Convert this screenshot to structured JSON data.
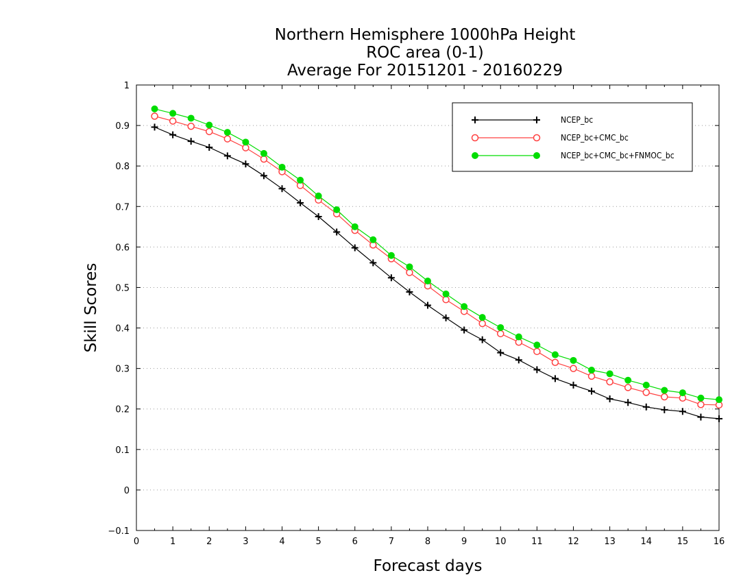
{
  "chart_data": {
    "type": "line",
    "title": [
      "Northern Hemisphere 1000hPa Height",
      "ROC area (0-1)",
      "Average For 20151201 - 20160229"
    ],
    "xlabel": "Forecast days",
    "ylabel": "Skill Scores",
    "xlim": [
      0,
      16
    ],
    "ylim": [
      -0.1,
      1
    ],
    "x_ticks": [
      0,
      1,
      2,
      3,
      4,
      5,
      6,
      7,
      8,
      9,
      10,
      11,
      12,
      13,
      14,
      15,
      16
    ],
    "y_ticks": [
      -0.1,
      0,
      0.1,
      0.2,
      0.3,
      0.4,
      0.5,
      0.6,
      0.7,
      0.8,
      0.9,
      1
    ],
    "grid": "horizontal-dotted",
    "legend": "top-right",
    "x": [
      0.5,
      1,
      1.5,
      2,
      2.5,
      3,
      3.5,
      4,
      4.5,
      5,
      5.5,
      6,
      6.5,
      7,
      7.5,
      8,
      8.5,
      9,
      9.5,
      10,
      10.5,
      11,
      11.5,
      12,
      12.5,
      13,
      13.5,
      14,
      14.5,
      15,
      15.5,
      16
    ],
    "series": [
      {
        "name": "NCEP_bc",
        "color": "#000000",
        "marker": "plus",
        "values": [
          0.896,
          0.877,
          0.861,
          0.846,
          0.825,
          0.805,
          0.776,
          0.744,
          0.709,
          0.675,
          0.637,
          0.598,
          0.561,
          0.524,
          0.489,
          0.456,
          0.425,
          0.395,
          0.371,
          0.339,
          0.321,
          0.297,
          0.275,
          0.259,
          0.244,
          0.225,
          0.216,
          0.205,
          0.198,
          0.194,
          0.18,
          0.176
        ]
      },
      {
        "name": "NCEP_bc+CMC_bc",
        "color": "#ff4040",
        "marker": "open-circle",
        "values": [
          0.923,
          0.911,
          0.898,
          0.885,
          0.867,
          0.845,
          0.817,
          0.786,
          0.752,
          0.716,
          0.682,
          0.641,
          0.605,
          0.571,
          0.537,
          0.504,
          0.47,
          0.441,
          0.411,
          0.386,
          0.365,
          0.342,
          0.315,
          0.3,
          0.281,
          0.267,
          0.253,
          0.241,
          0.23,
          0.227,
          0.211,
          0.21
        ]
      },
      {
        "name": "NCEP_bc+CMC_bc+FNMOC_bc",
        "color": "#00dd00",
        "marker": "filled-circle",
        "values": [
          0.941,
          0.93,
          0.918,
          0.901,
          0.883,
          0.859,
          0.831,
          0.797,
          0.765,
          0.726,
          0.692,
          0.65,
          0.618,
          0.579,
          0.551,
          0.516,
          0.484,
          0.453,
          0.426,
          0.401,
          0.378,
          0.358,
          0.334,
          0.32,
          0.296,
          0.287,
          0.271,
          0.259,
          0.246,
          0.24,
          0.227,
          0.223
        ]
      }
    ]
  }
}
